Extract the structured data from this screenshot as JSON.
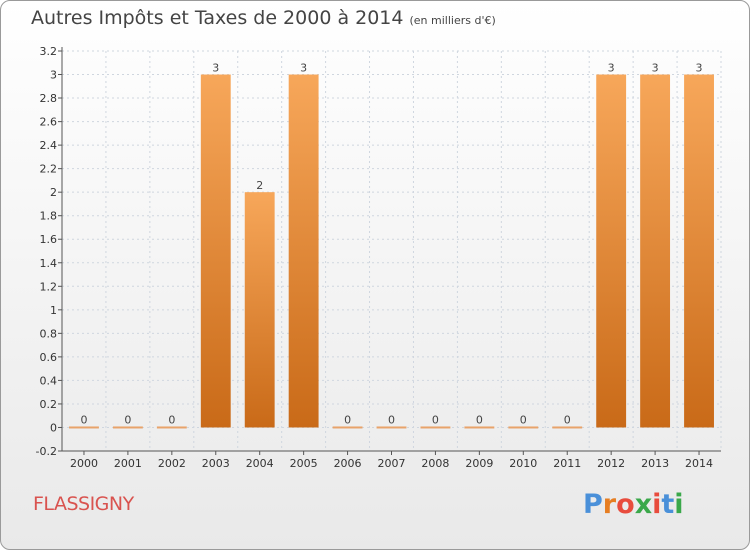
{
  "title": "Autres Impôts et Taxes de 2000 à 2014",
  "subtitle": "(en milliers d'€)",
  "commune": "FLASSIGNY",
  "brand": {
    "letters": [
      "P",
      "r",
      "o",
      "x",
      "i",
      "t",
      "i"
    ],
    "colors": [
      "#4a90d9",
      "#e67e22",
      "#e84c3d",
      "#3aa84a",
      "#e84c3d",
      "#4a90d9",
      "#3aa84a"
    ]
  },
  "colors": {
    "bar_top": "#f7a75a",
    "bar_bottom": "#c96a18",
    "zero_bar": "#e8a36a",
    "grid": "#cfd6df"
  },
  "chart_data": {
    "type": "bar",
    "categories": [
      "2000",
      "2001",
      "2002",
      "2003",
      "2004",
      "2005",
      "2006",
      "2007",
      "2008",
      "2009",
      "2010",
      "2011",
      "2012",
      "2013",
      "2014"
    ],
    "values": [
      0,
      0,
      0,
      3,
      2,
      3,
      0,
      0,
      0,
      0,
      0,
      0,
      3,
      3,
      3
    ],
    "data_labels": [
      "0",
      "0",
      "0",
      "3",
      "2",
      "3",
      "0",
      "0",
      "0",
      "0",
      "0",
      "0",
      "3",
      "3",
      "3"
    ],
    "y_ticks": [
      "-0.2",
      "0",
      "0.2",
      "0.4",
      "0.6",
      "0.8",
      "1",
      "1.2",
      "1.4",
      "1.6",
      "1.8",
      "2",
      "2.2",
      "2.4",
      "2.6",
      "2.8",
      "3",
      "3.2"
    ],
    "ylim": [
      -0.2,
      3.2
    ],
    "grid": true
  }
}
